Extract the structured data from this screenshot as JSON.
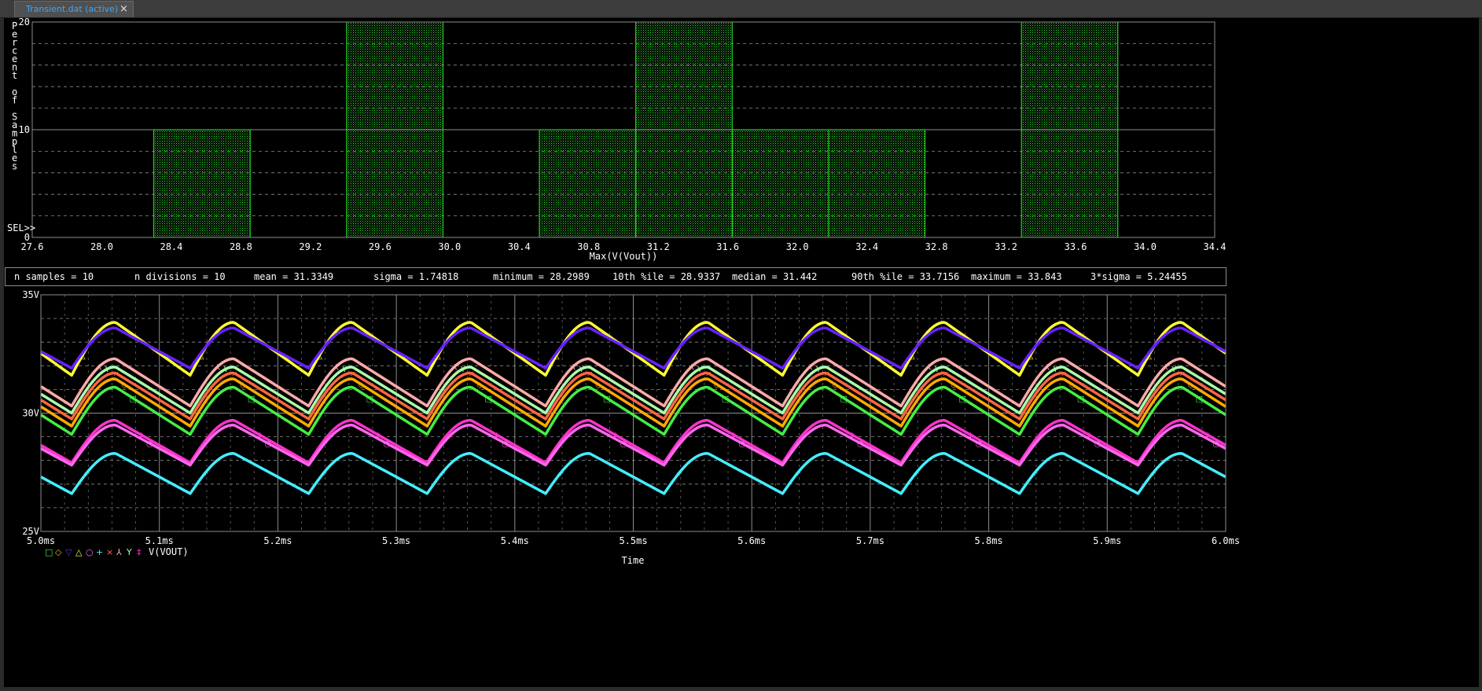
{
  "tab": {
    "label": "Transient.dat (active)",
    "close_glyph": "×"
  },
  "colors": {
    "histogram": "#2ee82e",
    "grid": "#8c8c8c",
    "text": "#ffffff",
    "background": "#000000",
    "window": "#2b2b2b",
    "tab_text": "#3aa8ff"
  },
  "stats": {
    "n_samples": "n samples   = 10",
    "n_divisions": "n divisions = 10",
    "mean": "mean         = 31.3349",
    "sigma": "sigma        = 1.74818",
    "minimum": "minimum      = 28.2989",
    "p10": "10th %ile    = 28.9337",
    "median": "median       = 31.442",
    "p90": "90th %ile    = 33.7156",
    "maximum": "maximum      = 33.843",
    "three_sigma": "3*sigma      = 5.24455"
  },
  "chart_data": [
    {
      "type": "bar",
      "ylabel": "Percent of Samples",
      "xlabel": "Max(V(Vout))",
      "sel_label": "SEL>>",
      "xlim": [
        27.6,
        34.4
      ],
      "ylim": [
        0,
        20
      ],
      "yticks": [
        "0",
        "10",
        "20"
      ],
      "xticks": [
        "27.6",
        "28.0",
        "28.4",
        "28.8",
        "29.2",
        "29.6",
        "30.0",
        "30.4",
        "30.8",
        "31.2",
        "31.6",
        "32.0",
        "32.4",
        "32.8",
        "33.2",
        "33.6",
        "34.0",
        "34.4"
      ],
      "bins": [
        {
          "from": 28.2989,
          "to": 28.8533,
          "value": 10
        },
        {
          "from": 29.4077,
          "to": 29.9621,
          "value": 20
        },
        {
          "from": 30.5165,
          "to": 31.0709,
          "value": 10
        },
        {
          "from": 31.0709,
          "to": 31.6253,
          "value": 20
        },
        {
          "from": 31.6253,
          "to": 32.1797,
          "value": 10
        },
        {
          "from": 32.1797,
          "to": 32.7341,
          "value": 10
        },
        {
          "from": 33.2885,
          "to": 33.843,
          "value": 20
        }
      ]
    },
    {
      "type": "line",
      "xlabel": "Time",
      "xlim": [
        5.0,
        6.0
      ],
      "ylim": [
        25,
        35
      ],
      "xticks": [
        "5.0ms",
        "5.1ms",
        "5.2ms",
        "5.3ms",
        "5.4ms",
        "5.5ms",
        "5.6ms",
        "5.7ms",
        "5.8ms",
        "5.9ms",
        "6.0ms"
      ],
      "yticks": [
        "25V",
        "30V",
        "35V"
      ],
      "period_ms": 0.1,
      "min_phase_ms": 0.026,
      "peak_phase_ms": 0.063,
      "legend_text": "V(VOUT)",
      "legend_markers": [
        "□",
        "◇",
        "▽",
        "△",
        "○",
        "+",
        "×",
        "⅄",
        "Y",
        "‡"
      ],
      "series": [
        {
          "marker": "△",
          "color": "#ffff33",
          "min": 31.6,
          "max": 33.84
        },
        {
          "marker": "▽",
          "color": "#6622ff",
          "min": 31.9,
          "max": 33.6
        },
        {
          "marker": "⅄",
          "color": "#ffaaaa",
          "min": 30.3,
          "max": 32.3
        },
        {
          "marker": "Y",
          "color": "#aaffaa",
          "min": 30.0,
          "max": 31.95
        },
        {
          "marker": "×",
          "color": "#ff6644",
          "min": 29.75,
          "max": 31.7
        },
        {
          "marker": "◇",
          "color": "#ffaa00",
          "min": 29.45,
          "max": 31.45
        },
        {
          "marker": "□",
          "color": "#44ee44",
          "min": 29.1,
          "max": 31.1
        },
        {
          "marker": "‡",
          "color": "#ff33cc",
          "min": 27.9,
          "max": 29.7
        },
        {
          "marker": "○",
          "color": "#ff66ee",
          "min": 27.8,
          "max": 29.5
        },
        {
          "marker": "+",
          "color": "#44eeff",
          "min": 26.6,
          "max": 28.3
        }
      ]
    }
  ]
}
